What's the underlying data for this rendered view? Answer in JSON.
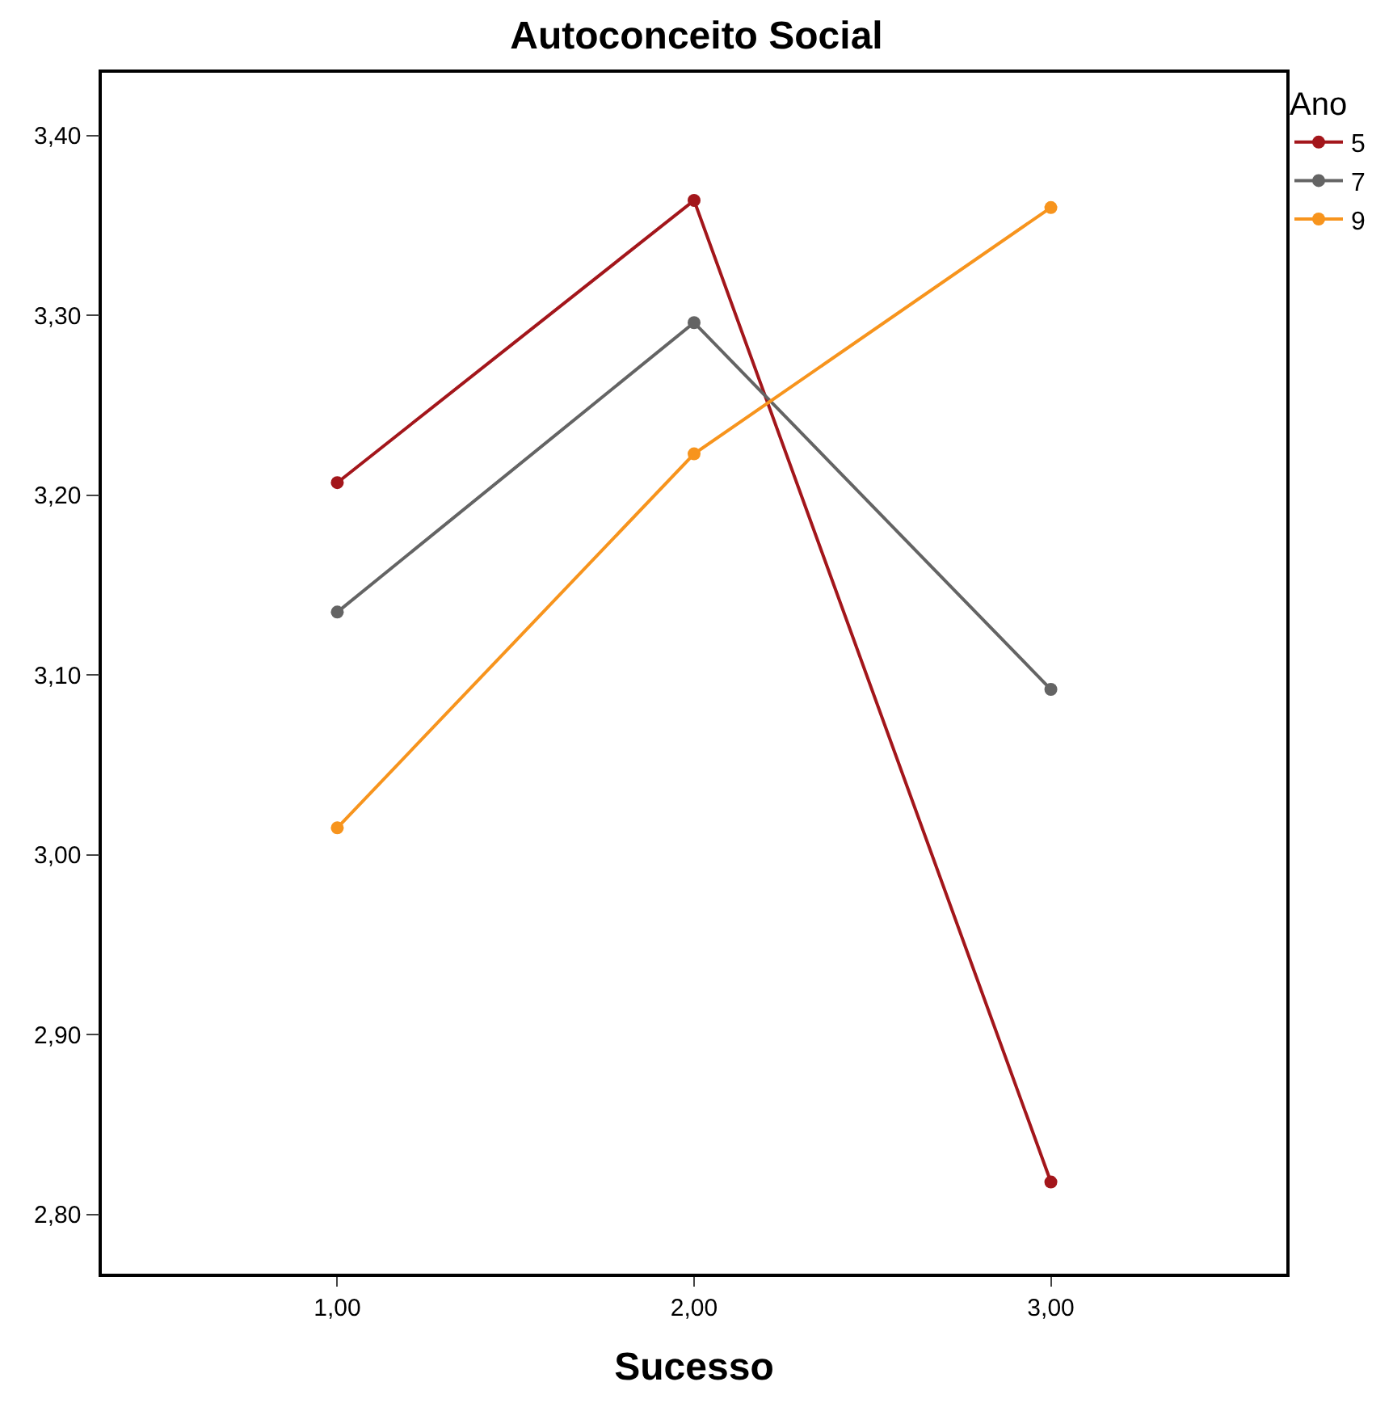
{
  "chart_data": {
    "type": "line",
    "title": "Autoconceito Social",
    "xlabel": "Sucesso",
    "legend_title": "Ano",
    "legend": "top right",
    "marker": "circle",
    "line_style": "solid",
    "x": [
      1,
      2,
      3
    ],
    "xlim": [
      0.34,
      3.66
    ],
    "ylim": [
      2.767,
      3.435
    ],
    "xticks": [
      {
        "value": 1,
        "label": "1,00"
      },
      {
        "value": 2,
        "label": "2,00"
      },
      {
        "value": 3,
        "label": "3,00"
      }
    ],
    "yticks": [
      {
        "value": 2.8,
        "label": "2,80"
      },
      {
        "value": 2.9,
        "label": "2,90"
      },
      {
        "value": 3.0,
        "label": "3,00"
      },
      {
        "value": 3.1,
        "label": "3,10"
      },
      {
        "value": 3.2,
        "label": "3,20"
      },
      {
        "value": 3.3,
        "label": "3,30"
      },
      {
        "value": 3.4,
        "label": "3,40"
      }
    ],
    "series": [
      {
        "name": "5",
        "color": "#a3161b",
        "values": [
          3.207,
          3.364,
          2.818
        ]
      },
      {
        "name": "7",
        "color": "#646464",
        "values": [
          3.135,
          3.296,
          3.092
        ]
      },
      {
        "name": "9",
        "color": "#f7941d",
        "values": [
          3.015,
          3.223,
          3.36
        ]
      }
    ]
  }
}
